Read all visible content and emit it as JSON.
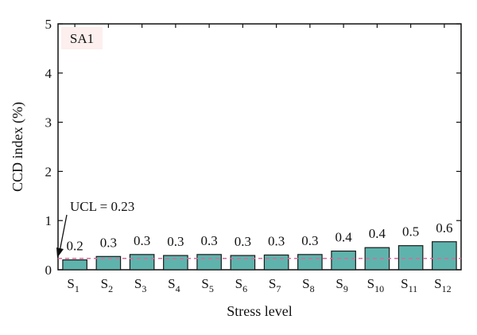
{
  "chart_data": {
    "type": "bar",
    "panel_label": "SA1",
    "categories": [
      {
        "base": "S",
        "sub": "1"
      },
      {
        "base": "S",
        "sub": "2"
      },
      {
        "base": "S",
        "sub": "3"
      },
      {
        "base": "S",
        "sub": "4"
      },
      {
        "base": "S",
        "sub": "5"
      },
      {
        "base": "S",
        "sub": "6"
      },
      {
        "base": "S",
        "sub": "7"
      },
      {
        "base": "S",
        "sub": "8"
      },
      {
        "base": "S",
        "sub": "9"
      },
      {
        "base": "S",
        "sub": "10"
      },
      {
        "base": "S",
        "sub": "11"
      },
      {
        "base": "S",
        "sub": "12"
      }
    ],
    "values": [
      0.2,
      0.27,
      0.31,
      0.29,
      0.31,
      0.29,
      0.3,
      0.31,
      0.38,
      0.45,
      0.49,
      0.57
    ],
    "data_labels": [
      "0.2",
      "0.3",
      "0.3",
      "0.3",
      "0.3",
      "0.3",
      "0.3",
      "0.3",
      "0.4",
      "0.4",
      "0.5",
      "0.6"
    ],
    "xlabel": "Stress level",
    "ylabel": "CCD index (%)",
    "ylim": [
      0,
      5
    ],
    "yticks": [
      "0",
      "1",
      "2",
      "3",
      "4",
      "5"
    ],
    "reference_line": {
      "value": 0.23,
      "label": "UCL = 0.23",
      "style": "dashed",
      "color": "#d86a9c"
    },
    "colors": {
      "bar": "#5fb3ad",
      "bar_edge": "#1a1a1a",
      "panel_bg": "#fcefee"
    }
  }
}
